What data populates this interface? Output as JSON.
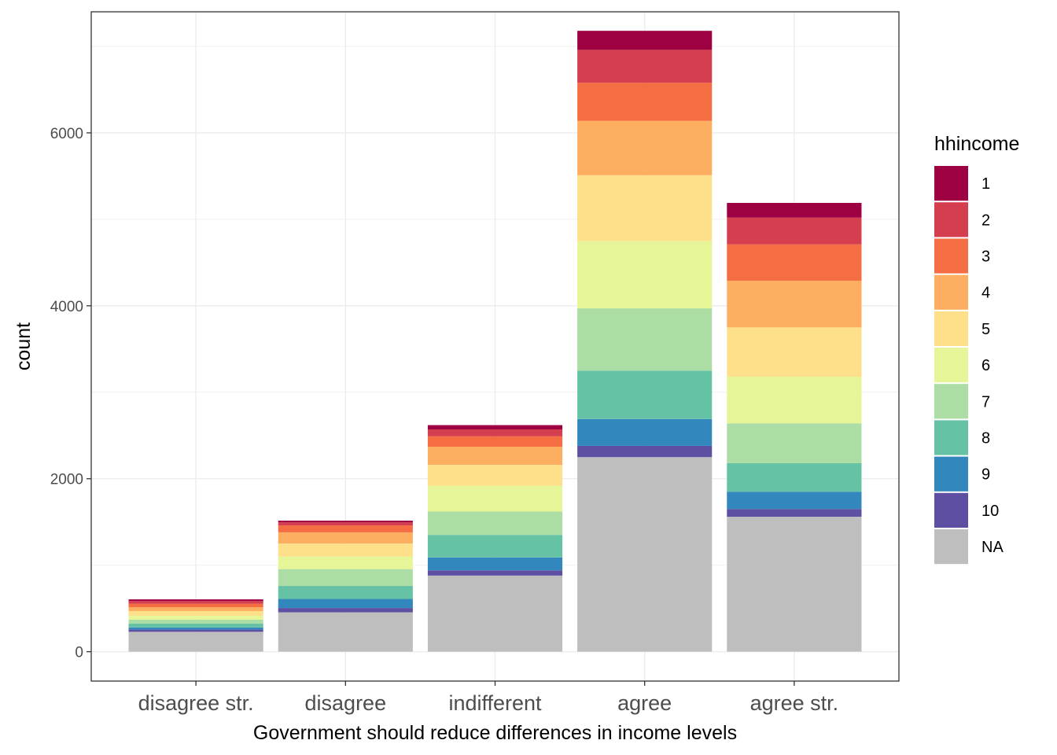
{
  "chart_data": {
    "type": "bar",
    "stacked": true,
    "xlabel": "Government should reduce differences in income levels",
    "ylabel": "count",
    "categories": [
      "disagree str.",
      "disagree",
      "indifferent",
      "agree",
      "agree str."
    ],
    "ylim": [
      -340,
      7400
    ],
    "yticks": [
      0,
      2000,
      4000,
      6000
    ],
    "grid": true,
    "legend_title": "hhincome",
    "legend_position": "right",
    "stack_order_bottom_to_top": [
      "NA",
      "10",
      "9",
      "8",
      "7",
      "6",
      "5",
      "4",
      "3",
      "2",
      "1"
    ],
    "series": [
      {
        "name": "1",
        "color": "#9E0142",
        "values": [
          20,
          20,
          50,
          220,
          170
        ]
      },
      {
        "name": "2",
        "color": "#D53E4F",
        "values": [
          30,
          35,
          80,
          380,
          310
        ]
      },
      {
        "name": "3",
        "color": "#F46D43",
        "values": [
          40,
          80,
          120,
          440,
          420
        ]
      },
      {
        "name": "4",
        "color": "#FDAE61",
        "values": [
          45,
          130,
          210,
          630,
          540
        ]
      },
      {
        "name": "5",
        "color": "#FEE08B",
        "values": [
          55,
          150,
          240,
          760,
          570
        ]
      },
      {
        "name": "6",
        "color": "#E6F598",
        "values": [
          45,
          145,
          300,
          780,
          540
        ]
      },
      {
        "name": "7",
        "color": "#ABDDA4",
        "values": [
          45,
          195,
          270,
          720,
          460
        ]
      },
      {
        "name": "8",
        "color": "#66C2A5",
        "values": [
          45,
          150,
          260,
          560,
          330
        ]
      },
      {
        "name": "9",
        "color": "#3288BD",
        "values": [
          25,
          105,
          150,
          310,
          200
        ]
      },
      {
        "name": "10",
        "color": "#5E4FA2",
        "values": [
          25,
          50,
          60,
          130,
          90
        ]
      },
      {
        "name": "NA",
        "color": "#BEBEBE",
        "values": [
          230,
          455,
          880,
          2250,
          1560
        ]
      }
    ]
  }
}
